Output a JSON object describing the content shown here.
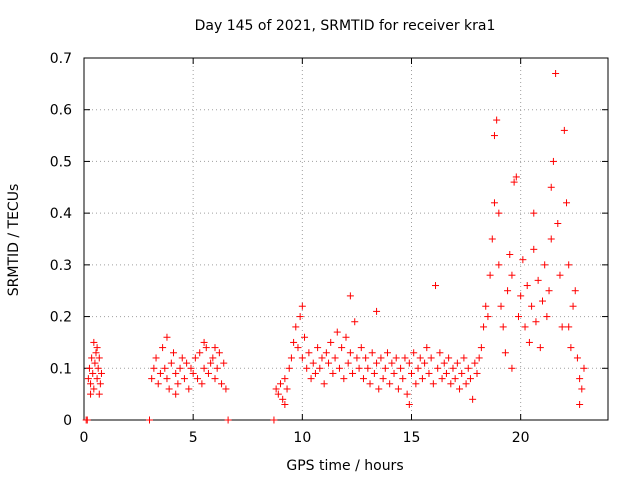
{
  "chart_data": {
    "type": "scatter",
    "title": "Day 145 of 2021, SRMTID for receiver kra1",
    "xlabel": "GPS time / hours",
    "ylabel": "SRMTID / TECUs",
    "xlim": [
      0,
      24
    ],
    "ylim": [
      0,
      0.7
    ],
    "xticks": [
      0,
      5,
      10,
      15,
      20
    ],
    "yticks": [
      0,
      0.1,
      0.2,
      0.3,
      0.4,
      0.5,
      0.6,
      0.7
    ],
    "xtick_labels": [
      "0",
      "5",
      "10",
      "15",
      "20"
    ],
    "ytick_labels": [
      "0",
      "0.1",
      "0.2",
      "0.3",
      "0.4",
      "0.5",
      "0.6",
      "0.7"
    ],
    "grid": true,
    "marker": "+",
    "color": "#ff0000",
    "series": [
      {
        "name": "SRMTID",
        "points": [
          [
            0.1,
            0.0
          ],
          [
            0.15,
            0.0
          ],
          [
            0.2,
            0.08
          ],
          [
            0.25,
            0.1
          ],
          [
            0.3,
            0.07
          ],
          [
            0.35,
            0.12
          ],
          [
            0.4,
            0.09
          ],
          [
            0.45,
            0.06
          ],
          [
            0.5,
            0.11
          ],
          [
            0.55,
            0.13
          ],
          [
            0.6,
            0.08
          ],
          [
            0.65,
            0.1
          ],
          [
            0.7,
            0.12
          ],
          [
            0.75,
            0.07
          ],
          [
            0.8,
            0.09
          ],
          [
            0.3,
            0.05
          ],
          [
            0.45,
            0.15
          ],
          [
            0.6,
            0.14
          ],
          [
            0.7,
            0.05
          ],
          [
            3.0,
            0.0
          ],
          [
            3.1,
            0.08
          ],
          [
            3.2,
            0.1
          ],
          [
            3.3,
            0.12
          ],
          [
            3.4,
            0.07
          ],
          [
            3.5,
            0.09
          ],
          [
            3.6,
            0.14
          ],
          [
            3.7,
            0.1
          ],
          [
            3.8,
            0.08
          ],
          [
            3.9,
            0.06
          ],
          [
            4.0,
            0.11
          ],
          [
            4.1,
            0.13
          ],
          [
            4.2,
            0.09
          ],
          [
            4.3,
            0.07
          ],
          [
            4.4,
            0.1
          ],
          [
            4.5,
            0.12
          ],
          [
            4.6,
            0.08
          ],
          [
            4.7,
            0.11
          ],
          [
            4.8,
            0.06
          ],
          [
            4.9,
            0.1
          ],
          [
            5.0,
            0.09
          ],
          [
            5.1,
            0.12
          ],
          [
            5.2,
            0.08
          ],
          [
            5.3,
            0.13
          ],
          [
            5.4,
            0.07
          ],
          [
            5.5,
            0.1
          ],
          [
            5.6,
            0.14
          ],
          [
            5.7,
            0.09
          ],
          [
            5.8,
            0.11
          ],
          [
            5.9,
            0.12
          ],
          [
            6.0,
            0.08
          ],
          [
            6.1,
            0.1
          ],
          [
            6.2,
            0.13
          ],
          [
            6.3,
            0.07
          ],
          [
            6.4,
            0.11
          ],
          [
            6.5,
            0.06
          ],
          [
            6.6,
            0.0
          ],
          [
            3.8,
            0.16
          ],
          [
            4.2,
            0.05
          ],
          [
            5.5,
            0.15
          ],
          [
            6.0,
            0.14
          ],
          [
            8.7,
            0.0
          ],
          [
            8.8,
            0.06
          ],
          [
            8.9,
            0.05
          ],
          [
            9.0,
            0.07
          ],
          [
            9.1,
            0.04
          ],
          [
            9.2,
            0.08
          ],
          [
            9.3,
            0.06
          ],
          [
            9.4,
            0.1
          ],
          [
            9.5,
            0.12
          ],
          [
            9.6,
            0.15
          ],
          [
            9.7,
            0.18
          ],
          [
            9.8,
            0.14
          ],
          [
            9.9,
            0.2
          ],
          [
            10.0,
            0.12
          ],
          [
            10.1,
            0.16
          ],
          [
            10.2,
            0.1
          ],
          [
            10.3,
            0.13
          ],
          [
            10.4,
            0.08
          ],
          [
            10.5,
            0.11
          ],
          [
            10.6,
            0.09
          ],
          [
            10.7,
            0.14
          ],
          [
            10.8,
            0.1
          ],
          [
            10.9,
            0.12
          ],
          [
            11.0,
            0.07
          ],
          [
            11.1,
            0.13
          ],
          [
            11.2,
            0.11
          ],
          [
            11.3,
            0.15
          ],
          [
            11.4,
            0.09
          ],
          [
            11.5,
            0.12
          ],
          [
            11.6,
            0.17
          ],
          [
            11.7,
            0.1
          ],
          [
            11.8,
            0.14
          ],
          [
            11.9,
            0.08
          ],
          [
            12.0,
            0.16
          ],
          [
            12.1,
            0.11
          ],
          [
            12.2,
            0.13
          ],
          [
            12.3,
            0.09
          ],
          [
            12.4,
            0.19
          ],
          [
            12.5,
            0.12
          ],
          [
            12.6,
            0.1
          ],
          [
            12.7,
            0.14
          ],
          [
            12.8,
            0.08
          ],
          [
            12.9,
            0.12
          ],
          [
            13.0,
            0.1
          ],
          [
            13.1,
            0.07
          ],
          [
            13.2,
            0.13
          ],
          [
            13.3,
            0.09
          ],
          [
            13.4,
            0.11
          ],
          [
            13.5,
            0.06
          ],
          [
            13.6,
            0.12
          ],
          [
            13.7,
            0.08
          ],
          [
            13.8,
            0.1
          ],
          [
            13.9,
            0.13
          ],
          [
            14.0,
            0.07
          ],
          [
            14.1,
            0.11
          ],
          [
            14.2,
            0.09
          ],
          [
            14.3,
            0.12
          ],
          [
            14.4,
            0.06
          ],
          [
            14.5,
            0.1
          ],
          [
            14.6,
            0.08
          ],
          [
            14.7,
            0.12
          ],
          [
            14.8,
            0.05
          ],
          [
            14.9,
            0.11
          ],
          [
            15.0,
            0.09
          ],
          [
            15.1,
            0.13
          ],
          [
            15.2,
            0.07
          ],
          [
            15.3,
            0.1
          ],
          [
            15.4,
            0.12
          ],
          [
            15.5,
            0.08
          ],
          [
            15.6,
            0.11
          ],
          [
            15.7,
            0.14
          ],
          [
            15.8,
            0.09
          ],
          [
            15.9,
            0.12
          ],
          [
            16.0,
            0.07
          ],
          [
            16.1,
            0.26
          ],
          [
            16.2,
            0.1
          ],
          [
            16.3,
            0.13
          ],
          [
            16.4,
            0.08
          ],
          [
            16.5,
            0.11
          ],
          [
            16.6,
            0.09
          ],
          [
            16.7,
            0.12
          ],
          [
            16.8,
            0.07
          ],
          [
            16.9,
            0.1
          ],
          [
            17.0,
            0.08
          ],
          [
            17.1,
            0.11
          ],
          [
            17.2,
            0.06
          ],
          [
            17.3,
            0.09
          ],
          [
            17.4,
            0.12
          ],
          [
            17.5,
            0.07
          ],
          [
            17.6,
            0.1
          ],
          [
            17.7,
            0.08
          ],
          [
            17.8,
            0.04
          ],
          [
            17.9,
            0.11
          ],
          [
            18.0,
            0.09
          ],
          [
            18.1,
            0.12
          ],
          [
            18.2,
            0.14
          ],
          [
            18.3,
            0.18
          ],
          [
            18.4,
            0.22
          ],
          [
            9.2,
            0.03
          ],
          [
            10.0,
            0.22
          ],
          [
            12.2,
            0.24
          ],
          [
            13.4,
            0.21
          ],
          [
            14.9,
            0.03
          ],
          [
            18.5,
            0.2
          ],
          [
            18.6,
            0.28
          ],
          [
            18.7,
            0.35
          ],
          [
            18.8,
            0.42
          ],
          [
            18.9,
            0.58
          ],
          [
            19.0,
            0.3
          ],
          [
            19.1,
            0.22
          ],
          [
            19.2,
            0.18
          ],
          [
            19.3,
            0.13
          ],
          [
            19.4,
            0.25
          ],
          [
            19.5,
            0.32
          ],
          [
            19.6,
            0.28
          ],
          [
            19.7,
            0.46
          ],
          [
            19.8,
            0.47
          ],
          [
            19.9,
            0.2
          ],
          [
            20.0,
            0.24
          ],
          [
            20.1,
            0.31
          ],
          [
            20.2,
            0.18
          ],
          [
            20.3,
            0.26
          ],
          [
            20.4,
            0.15
          ],
          [
            20.5,
            0.22
          ],
          [
            20.6,
            0.33
          ],
          [
            20.7,
            0.19
          ],
          [
            20.8,
            0.27
          ],
          [
            20.9,
            0.14
          ],
          [
            21.0,
            0.23
          ],
          [
            21.1,
            0.3
          ],
          [
            21.2,
            0.2
          ],
          [
            21.3,
            0.25
          ],
          [
            21.4,
            0.45
          ],
          [
            21.5,
            0.5
          ],
          [
            21.6,
            0.67
          ],
          [
            21.7,
            0.38
          ],
          [
            21.8,
            0.28
          ],
          [
            21.9,
            0.18
          ],
          [
            22.0,
            0.56
          ],
          [
            22.1,
            0.42
          ],
          [
            22.2,
            0.3
          ],
          [
            22.3,
            0.14
          ],
          [
            22.4,
            0.22
          ],
          [
            22.5,
            0.25
          ],
          [
            22.6,
            0.12
          ],
          [
            22.7,
            0.08
          ],
          [
            22.8,
            0.06
          ],
          [
            22.9,
            0.1
          ],
          [
            18.8,
            0.55
          ],
          [
            19.0,
            0.4
          ],
          [
            19.6,
            0.1
          ],
          [
            20.6,
            0.4
          ],
          [
            21.4,
            0.35
          ],
          [
            22.2,
            0.18
          ],
          [
            22.7,
            0.03
          ]
        ]
      }
    ]
  }
}
